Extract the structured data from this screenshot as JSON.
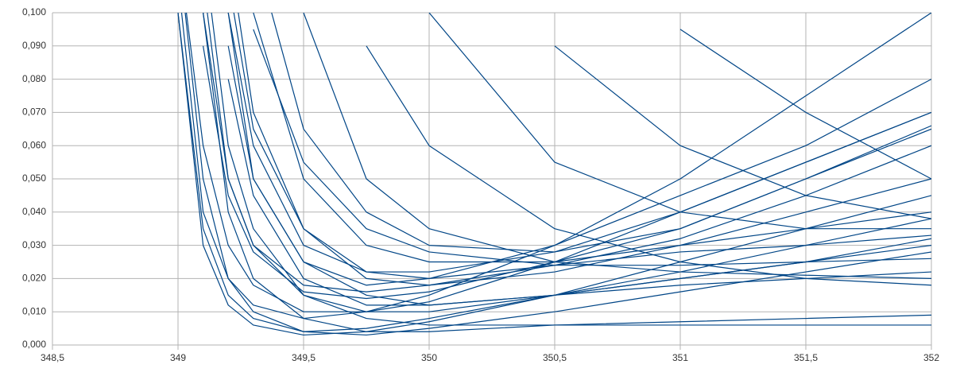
{
  "chart_data": {
    "type": "line",
    "color": "#004586",
    "grid": true,
    "xlim": [
      348.5,
      352
    ],
    "xticks": [
      {
        "value": 348.5,
        "label": "348,5"
      },
      349,
      {
        "value": 349.5,
        "label": "349,5"
      },
      350,
      {
        "value": 350.5,
        "label": "350,5"
      },
      351,
      {
        "value": 351.5,
        "label": "351,5"
      },
      352
    ],
    "ylim": [
      0,
      0.1
    ],
    "yticks": [
      {
        "value": 0,
        "label": "0,000"
      },
      {
        "value": 0.01,
        "label": "0,010"
      },
      {
        "value": 0.02,
        "label": "0,020"
      },
      {
        "value": 0.03,
        "label": "0,030"
      },
      {
        "value": 0.04,
        "label": "0,040"
      },
      {
        "value": 0.05,
        "label": "0,050"
      },
      {
        "value": 0.06,
        "label": "0,060"
      },
      {
        "value": 0.07,
        "label": "0,070"
      },
      {
        "value": 0.08,
        "label": "0,080"
      },
      {
        "value": 0.09,
        "label": "0,090"
      },
      {
        "value": 0.1,
        "label": "0,100"
      }
    ],
    "x": [
      349,
      349.1,
      349.2,
      349.3,
      349.5,
      349.75,
      350,
      350.5,
      351,
      351.5,
      352
    ],
    "series": [
      {
        "values": [
          0.1,
          0.03,
          0.012,
          0.006,
          0.003,
          0.004,
          0.007,
          0.015,
          0.025,
          0.035,
          0.045
        ]
      },
      {
        "values": [
          0.12,
          0.05,
          0.02,
          0.01,
          0.004,
          0.003,
          0.005,
          0.01,
          0.016,
          0.022,
          0.028
        ]
      },
      {
        "values": [
          null,
          0.1,
          0.04,
          0.02,
          0.008,
          0.004,
          0.004,
          0.006,
          0.007,
          0.008,
          0.009
        ]
      },
      {
        "values": [
          null,
          0.12,
          0.06,
          0.035,
          0.015,
          0.008,
          0.006,
          0.006,
          0.006,
          0.006,
          0.006
        ]
      },
      {
        "values": [
          null,
          null,
          0.1,
          0.05,
          0.025,
          0.015,
          0.012,
          0.015,
          0.02,
          0.025,
          0.03
        ]
      },
      {
        "values": [
          null,
          null,
          0.12,
          0.07,
          0.035,
          0.02,
          0.018,
          0.022,
          0.03,
          0.04,
          0.05
        ]
      },
      {
        "values": [
          null,
          0.11,
          0.05,
          0.03,
          0.015,
          0.01,
          0.01,
          0.015,
          0.02,
          0.025,
          0.032
        ]
      },
      {
        "values": [
          null,
          null,
          0.1,
          0.06,
          0.03,
          0.022,
          0.022,
          0.028,
          0.04,
          0.055,
          0.07
        ]
      },
      {
        "values": [
          null,
          null,
          null,
          0.1,
          0.05,
          0.03,
          0.025,
          0.025,
          0.03,
          0.035,
          0.04
        ]
      },
      {
        "values": [
          null,
          null,
          null,
          0.12,
          0.065,
          0.04,
          0.03,
          0.028,
          0.035,
          0.05,
          0.066
        ]
      },
      {
        "values": [
          null,
          null,
          0.11,
          0.065,
          0.035,
          0.022,
          0.02,
          0.024,
          0.032,
          0.045,
          0.06
        ]
      },
      {
        "values": [
          null,
          null,
          null,
          null,
          0.1,
          0.05,
          0.035,
          0.025,
          0.022,
          0.021,
          0.02
        ]
      },
      {
        "values": [
          null,
          null,
          null,
          null,
          null,
          0.09,
          0.06,
          0.035,
          0.025,
          0.02,
          0.018
        ]
      },
      {
        "values": [
          null,
          null,
          null,
          null,
          null,
          null,
          0.1,
          0.055,
          0.04,
          0.035,
          0.035
        ]
      },
      {
        "values": [
          null,
          null,
          null,
          null,
          null,
          null,
          null,
          0.09,
          0.06,
          0.045,
          0.038
        ]
      },
      {
        "values": [
          null,
          null,
          null,
          null,
          null,
          null,
          null,
          null,
          0.095,
          0.07,
          0.05
        ]
      },
      {
        "values": [
          0.11,
          0.04,
          0.02,
          0.012,
          0.008,
          0.01,
          0.015,
          0.03,
          0.05,
          0.075,
          0.1
        ]
      },
      {
        "values": [
          0.12,
          0.06,
          0.03,
          0.018,
          0.01,
          0.01,
          0.013,
          0.025,
          0.04,
          0.055,
          0.07
        ]
      },
      {
        "values": [
          null,
          0.09,
          0.045,
          0.028,
          0.016,
          0.014,
          0.016,
          0.025,
          0.035,
          0.05,
          0.065
        ]
      },
      {
        "values": [
          null,
          null,
          0.09,
          0.05,
          0.025,
          0.018,
          0.02,
          0.03,
          0.045,
          0.06,
          0.08
        ]
      },
      {
        "values": [
          null,
          null,
          0.08,
          0.045,
          0.02,
          0.012,
          0.012,
          0.015,
          0.018,
          0.02,
          0.022
        ]
      },
      {
        "values": [
          0.1,
          0.035,
          0.015,
          0.008,
          0.004,
          0.005,
          0.008,
          0.015,
          0.022,
          0.03,
          0.038
        ]
      },
      {
        "values": [
          null,
          0.1,
          0.05,
          0.03,
          0.018,
          0.016,
          0.018,
          0.024,
          0.028,
          0.03,
          0.033
        ]
      },
      {
        "values": [
          null,
          null,
          null,
          0.095,
          0.055,
          0.035,
          0.028,
          0.024,
          0.024,
          0.025,
          0.026
        ]
      }
    ]
  }
}
